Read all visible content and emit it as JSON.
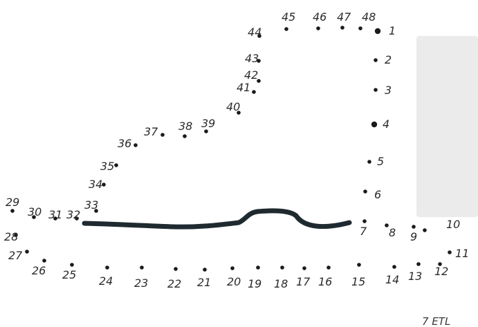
{
  "colors": {
    "background": "#ffffff",
    "ink": "#1a1a1a",
    "marker_line": "#1f2a30",
    "gray_panel": "#ebebeb"
  },
  "dots": [
    {
      "n": "1"
    },
    {
      "n": "2"
    },
    {
      "n": "3"
    },
    {
      "n": "4"
    },
    {
      "n": "5"
    },
    {
      "n": "6"
    },
    {
      "n": "7"
    },
    {
      "n": "8"
    },
    {
      "n": "9"
    },
    {
      "n": "10"
    },
    {
      "n": "11"
    },
    {
      "n": "12"
    },
    {
      "n": "13"
    },
    {
      "n": "14"
    },
    {
      "n": "15"
    },
    {
      "n": "16"
    },
    {
      "n": "17"
    },
    {
      "n": "18"
    },
    {
      "n": "19"
    },
    {
      "n": "20"
    },
    {
      "n": "21"
    },
    {
      "n": "22"
    },
    {
      "n": "23"
    },
    {
      "n": "24"
    },
    {
      "n": "25"
    },
    {
      "n": "26"
    },
    {
      "n": "27"
    },
    {
      "n": "28"
    },
    {
      "n": "29"
    },
    {
      "n": "30"
    },
    {
      "n": "31"
    },
    {
      "n": "32"
    },
    {
      "n": "33"
    },
    {
      "n": "34"
    },
    {
      "n": "35"
    },
    {
      "n": "36"
    },
    {
      "n": "37"
    },
    {
      "n": "38"
    },
    {
      "n": "39"
    },
    {
      "n": "40"
    },
    {
      "n": "41"
    },
    {
      "n": "42"
    },
    {
      "n": "43"
    },
    {
      "n": "44"
    },
    {
      "n": "45"
    },
    {
      "n": "46"
    },
    {
      "n": "47"
    },
    {
      "n": "48"
    }
  ],
  "footer_text": "7 ETL"
}
